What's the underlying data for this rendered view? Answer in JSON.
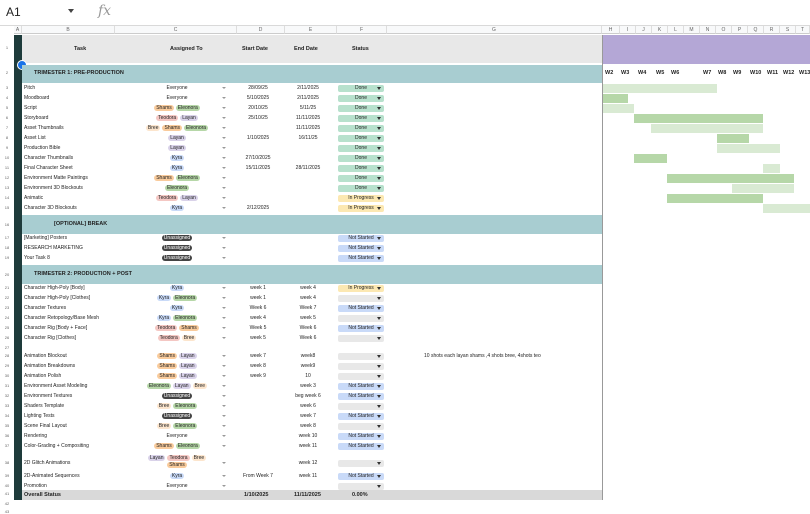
{
  "namebox": "A1",
  "fx": "fx",
  "columns": [
    "A",
    "B",
    "C",
    "D",
    "E",
    "F",
    "G",
    "H",
    "I",
    "J",
    "K",
    "L",
    "M",
    "N",
    "O",
    "P",
    "Q",
    "R",
    "S",
    "T"
  ],
  "headers": {
    "task": "Task",
    "assigned": "Assigned To",
    "start": "Start Date",
    "end": "End Date",
    "status": "Status"
  },
  "sections": {
    "s1": "TRIMESTER 1: PRE-PRODUCTION",
    "s2": "[OPTIONAL] BREAK",
    "s3": "TRIMESTER 2: PRODUCTION + POST"
  },
  "weeks": [
    "W2",
    "W3",
    "W4",
    "W5",
    "W6",
    "W7",
    "W8",
    "W9",
    "W10",
    "W11",
    "W12",
    "W13"
  ],
  "colors": {
    "done": "#b7e1cd",
    "progress": "#fce8b2",
    "notstarted": "#c9daf8",
    "section": "#a8cdd1",
    "gantt_header": "#b4a7d6",
    "bar_dark": "#b6d7a8",
    "bar_light": "#d9ead3"
  },
  "rows1": [
    {
      "n": "3",
      "task": "Pitch",
      "assigned": [
        {
          "t": "Everyone",
          "c": ""
        }
      ],
      "start": "28/09/25",
      "end": "2/11/2025",
      "status": "Done"
    },
    {
      "n": "4",
      "task": "Moodboard",
      "assigned": [
        {
          "t": "Everyone",
          "c": ""
        }
      ],
      "start": "5/10/2025",
      "end": "2/11/2025",
      "status": "Done"
    },
    {
      "n": "5",
      "task": "Script",
      "assigned": [
        {
          "t": "Shams",
          "c": "#f9cb9c"
        },
        {
          "t": "Eleonora",
          "c": "#b6d7a8"
        }
      ],
      "start": "20/10/25",
      "end": "5/11/25",
      "status": "Done"
    },
    {
      "n": "6",
      "task": "Storyboard",
      "assigned": [
        {
          "t": "Teodora",
          "c": "#f4c7c3"
        },
        {
          "t": "Layan",
          "c": "#d9d2e9"
        }
      ],
      "start": "25/10/25",
      "end": "11/11/2025",
      "status": "Done"
    },
    {
      "n": "7",
      "task": "Asset Thumbnails",
      "assigned": [
        {
          "t": "Bree",
          "c": "#fce5cd"
        },
        {
          "t": "Shams",
          "c": "#f9cb9c"
        },
        {
          "t": "Eleonora",
          "c": "#b6d7a8"
        }
      ],
      "start": "",
      "end": "11/11/2025",
      "status": "Done"
    },
    {
      "n": "8",
      "task": "Asset List",
      "assigned": [
        {
          "t": "Layan",
          "c": "#d9d2e9"
        }
      ],
      "start": "1/10/2025",
      "end": "16/11/25",
      "status": "Done"
    },
    {
      "n": "9",
      "task": "Production Bible",
      "assigned": [
        {
          "t": "Layan",
          "c": "#d9d2e9"
        }
      ],
      "start": "",
      "end": "",
      "status": "Done"
    },
    {
      "n": "10",
      "task": "Character Thumbnails",
      "assigned": [
        {
          "t": "Kyra",
          "c": "#c9daf8"
        }
      ],
      "start": "27/10/2025",
      "end": "",
      "status": "Done"
    },
    {
      "n": "11",
      "task": "Final Character Sheet",
      "assigned": [
        {
          "t": "Kyra",
          "c": "#c9daf8"
        }
      ],
      "start": "15/11/2025",
      "end": "28/11/2025",
      "status": "Done"
    },
    {
      "n": "12",
      "task": "Environment Matte Paintings",
      "assigned": [
        {
          "t": "Shams",
          "c": "#f9cb9c"
        },
        {
          "t": "Eleonora",
          "c": "#b6d7a8"
        }
      ],
      "start": "",
      "end": "",
      "status": "Done"
    },
    {
      "n": "13",
      "task": "Environment 3D Blockouts",
      "assigned": [
        {
          "t": "Eleonora",
          "c": "#b6d7a8"
        }
      ],
      "start": "",
      "end": "",
      "status": "Done"
    },
    {
      "n": "14",
      "task": "Animatic",
      "assigned": [
        {
          "t": "Teodora",
          "c": "#f4c7c3"
        },
        {
          "t": "Layan",
          "c": "#d9d2e9"
        }
      ],
      "start": "",
      "end": "",
      "status": "In Progress"
    },
    {
      "n": "15",
      "task": "Character 3D Blockouts",
      "assigned": [
        {
          "t": "Kyra",
          "c": "#c9daf8"
        }
      ],
      "start": "2/12/2025",
      "end": "",
      "status": "In Progress"
    }
  ],
  "rows2": [
    {
      "n": "17",
      "task": "[Marketing] Posters",
      "assigned": [
        {
          "t": "Unassigned",
          "c": "#444"
        }
      ],
      "start": "",
      "end": "",
      "status": "Not Started"
    },
    {
      "n": "18",
      "task": "RESEARCH MARKETING",
      "assigned": [
        {
          "t": "Unassigned",
          "c": "#444"
        }
      ],
      "start": "",
      "end": "",
      "status": "Not Started"
    },
    {
      "n": "19",
      "task": "Your Task 8",
      "assigned": [
        {
          "t": "Unassigned",
          "c": "#444"
        }
      ],
      "start": "",
      "end": "",
      "status": "Not Started"
    }
  ],
  "rows3": [
    {
      "n": "21",
      "task": "Character High-Poly [Body]",
      "assigned": [
        {
          "t": "Kyra",
          "c": "#c9daf8"
        }
      ],
      "start": "week 1",
      "end": "week 4",
      "status": "In Progress"
    },
    {
      "n": "22",
      "task": "Character High-Poly [Clothes]",
      "assigned": [
        {
          "t": "Kyra",
          "c": "#c9daf8"
        },
        {
          "t": "Eleonora",
          "c": "#b6d7a8"
        }
      ],
      "start": "week 1",
      "end": "week 4",
      "status": ""
    },
    {
      "n": "23",
      "task": "Character Textures",
      "assigned": [
        {
          "t": "Kyra",
          "c": "#c9daf8"
        }
      ],
      "start": "Week 6",
      "end": "Week 7",
      "status": "Not Started"
    },
    {
      "n": "24",
      "task": "Character Retopology/Base Mesh",
      "assigned": [
        {
          "t": "Kyra",
          "c": "#c9daf8"
        },
        {
          "t": "Eleonora",
          "c": "#b6d7a8"
        }
      ],
      "start": "week 4",
      "end": "week 5",
      "status": ""
    },
    {
      "n": "25",
      "task": "Character Rig [Body + Face]",
      "assigned": [
        {
          "t": "Teodora",
          "c": "#f4c7c3"
        },
        {
          "t": "Shams",
          "c": "#f9cb9c"
        }
      ],
      "start": "Week 5",
      "end": "Week 6",
      "status": "Not Started"
    },
    {
      "n": "26",
      "task": "Character Rig [Clothes]",
      "assigned": [
        {
          "t": "Teodora",
          "c": "#f4c7c3"
        },
        {
          "t": "Bree",
          "c": "#fce5cd"
        }
      ],
      "start": "week 5",
      "end": "Week 6",
      "status": ""
    },
    {
      "n": "28",
      "task": "Animation Blockout",
      "assigned": [
        {
          "t": "Shams",
          "c": "#f9cb9c"
        },
        {
          "t": "Layan",
          "c": "#d9d2e9"
        }
      ],
      "start": "week 7",
      "end": "week8",
      "status": "",
      "note": "10 shots each layan shams ,4 shots bree, 4shots teo"
    },
    {
      "n": "29",
      "task": "Animation Breakdowns",
      "assigned": [
        {
          "t": "Shams",
          "c": "#f9cb9c"
        },
        {
          "t": "Layan",
          "c": "#d9d2e9"
        }
      ],
      "start": "week 8",
      "end": "week9",
      "status": ""
    },
    {
      "n": "30",
      "task": "Animation Polish",
      "assigned": [
        {
          "t": "Shams",
          "c": "#f9cb9c"
        },
        {
          "t": "Layan",
          "c": "#d9d2e9"
        }
      ],
      "start": "week 9",
      "end": "10",
      "status": ""
    },
    {
      "n": "31",
      "task": "Environment Asset Modeling",
      "assigned": [
        {
          "t": "Eleonora",
          "c": "#b6d7a8"
        },
        {
          "t": "Layan",
          "c": "#d9d2e9"
        },
        {
          "t": "Bree",
          "c": "#fce5cd"
        }
      ],
      "start": "",
      "end": "week 3",
      "status": "Not Started"
    },
    {
      "n": "32",
      "task": "Environment Textures",
      "assigned": [
        {
          "t": "Unassigned",
          "c": "#444"
        }
      ],
      "start": "",
      "end": "beg week 6",
      "status": "Not Started"
    },
    {
      "n": "33",
      "task": "Shaders Template",
      "assigned": [
        {
          "t": "Bree",
          "c": "#fce5cd"
        },
        {
          "t": "Eleonora",
          "c": "#b6d7a8"
        }
      ],
      "start": "",
      "end": "week 6",
      "status": ""
    },
    {
      "n": "34",
      "task": "Lighting Tests",
      "assigned": [
        {
          "t": "Unassigned",
          "c": "#444"
        }
      ],
      "start": "",
      "end": "week 7",
      "status": "Not Started"
    },
    {
      "n": "35",
      "task": "Scene Final Layout",
      "assigned": [
        {
          "t": "Bree",
          "c": "#fce5cd"
        },
        {
          "t": "Eleonora",
          "c": "#b6d7a8"
        }
      ],
      "start": "",
      "end": "week 8",
      "status": ""
    },
    {
      "n": "36",
      "task": "Rendering",
      "assigned": [
        {
          "t": "Everyone",
          "c": ""
        }
      ],
      "start": "",
      "end": "week 10",
      "status": "Not Started"
    },
    {
      "n": "37",
      "task": "Color-Grading + Compositing",
      "assigned": [
        {
          "t": "Shams",
          "c": "#f9cb9c"
        },
        {
          "t": "Eleonora",
          "c": "#b6d7a8"
        }
      ],
      "start": "",
      "end": "week 11",
      "status": "Not Started"
    },
    {
      "n": "38",
      "task": "2D Glitch Animations",
      "assigned": [
        {
          "t": "Layan",
          "c": "#d9d2e9"
        },
        {
          "t": "Teodora",
          "c": "#f4c7c3"
        },
        {
          "t": "Bree",
          "c": "#fce5cd"
        },
        {
          "t": "Shams",
          "c": "#f9cb9c"
        }
      ],
      "start": "",
      "end": "week 12",
      "status": ""
    },
    {
      "n": "39",
      "task": "2D-Animated Sequences",
      "assigned": [
        {
          "t": "Kyra",
          "c": "#c9daf8"
        }
      ],
      "start": "From Week 7",
      "end": "week 11",
      "status": "Not Started"
    },
    {
      "n": "40",
      "task": "Promotion",
      "assigned": [
        {
          "t": "Everyone",
          "c": ""
        }
      ],
      "start": "",
      "end": "",
      "status": ""
    }
  ],
  "overall": {
    "n": "41",
    "label": "Overall Status",
    "start": "1/10/2025",
    "end": "11/11/2025",
    "pct": "0.00%"
  },
  "gantt_bars": [
    {
      "row": 3,
      "from": 0.0,
      "to": 0.55,
      "shade": "light"
    },
    {
      "row": 4,
      "from": 0.0,
      "to": 0.12,
      "shade": "dark"
    },
    {
      "row": 5,
      "from": 0.0,
      "to": 0.15,
      "shade": "light"
    },
    {
      "row": 6,
      "from": 0.15,
      "to": 0.77,
      "shade": "dark"
    },
    {
      "row": 7,
      "from": 0.23,
      "to": 0.77,
      "shade": "light"
    },
    {
      "row": 8,
      "from": 0.55,
      "to": 0.7,
      "shade": "dark"
    },
    {
      "row": 9,
      "from": 0.55,
      "to": 0.85,
      "shade": "light"
    },
    {
      "row": 10,
      "from": 0.15,
      "to": 0.31,
      "shade": "dark"
    },
    {
      "row": 11,
      "from": 0.77,
      "to": 0.85,
      "shade": "light"
    },
    {
      "row": 12,
      "from": 0.31,
      "to": 0.92,
      "shade": "dark"
    },
    {
      "row": 13,
      "from": 0.62,
      "to": 0.92,
      "shade": "light"
    },
    {
      "row": 14,
      "from": 0.31,
      "to": 0.77,
      "shade": "dark"
    },
    {
      "row": 15,
      "from": 0.77,
      "to": 1.0,
      "shade": "light"
    }
  ]
}
